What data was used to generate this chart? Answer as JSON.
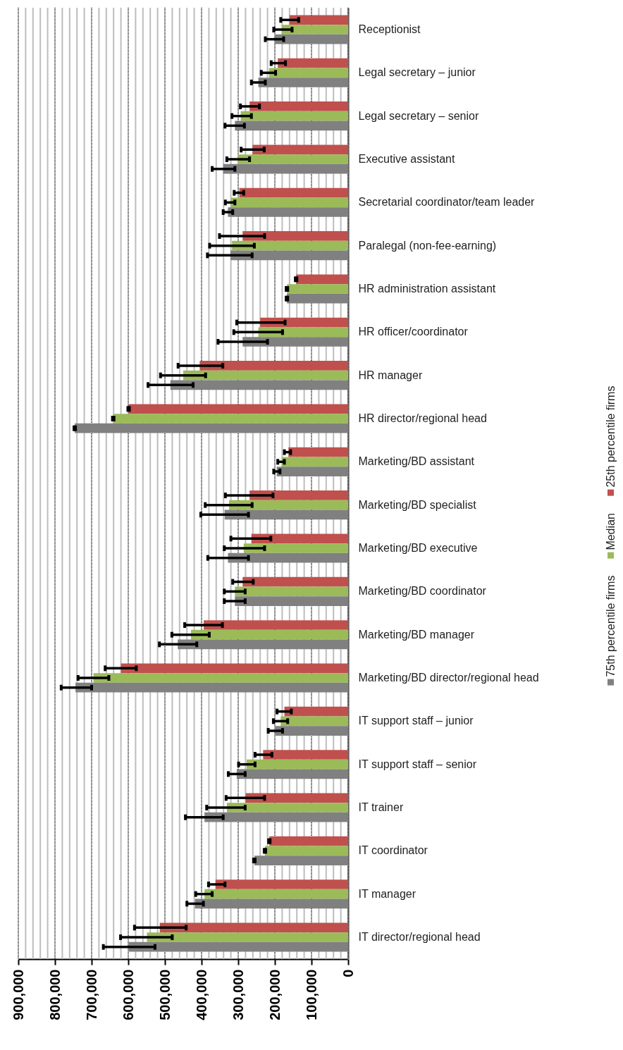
{
  "chart_data": {
    "type": "bar",
    "orientation": "horizontal",
    "categories": [
      "Receptionist",
      "Legal secretary – junior",
      "Legal secretary – senior",
      "Executive assistant",
      "Secretarial coordinator/team leader",
      "Paralegal (non-fee-earning)",
      "HR administration assistant",
      "HR officer/coordinator",
      "HR manager",
      "HR director/regional head",
      "Marketing/BD assistant",
      "Marketing/BD specialist",
      "Marketing/BD executive",
      "Marketing/BD coordinator",
      "Marketing/BD manager",
      "Marketing/BD director/regional head",
      "IT support staff – junior",
      "IT support staff – senior",
      "IT trainer",
      "IT coordinator",
      "IT manager",
      "IT director/regional head"
    ],
    "series": [
      {
        "name": "25th percentile firms",
        "color": "#c0504d",
        "values": [
          160000,
          192000,
          269000,
          261000,
          297000,
          288000,
          142000,
          240000,
          405000,
          599000,
          163000,
          269000,
          264000,
          288000,
          394000,
          620000,
          174000,
          232000,
          280000,
          215000,
          362000,
          514000
        ],
        "errors": [
          [
            135000,
            184000
          ],
          [
            171000,
            210000
          ],
          [
            242000,
            294000
          ],
          [
            229000,
            292000
          ],
          [
            285000,
            311000
          ],
          [
            228000,
            351000
          ],
          [
            140000,
            144000
          ],
          [
            172000,
            304000
          ],
          [
            342000,
            464000
          ],
          [
            597000,
            601000
          ],
          [
            157000,
            174000
          ],
          [
            205000,
            335000
          ],
          [
            211000,
            320000
          ],
          [
            259000,
            315000
          ],
          [
            343000,
            446000
          ],
          [
            578000,
            663000
          ],
          [
            155000,
            194000
          ],
          [
            208000,
            254000
          ],
          [
            228000,
            333000
          ],
          [
            213000,
            217000
          ],
          [
            336000,
            381000
          ],
          [
            442000,
            583000
          ]
        ]
      },
      {
        "name": "Median",
        "color": "#9bbb59",
        "values": [
          181000,
          216000,
          293000,
          301000,
          320000,
          317000,
          167000,
          245000,
          450000,
          641000,
          181000,
          325000,
          285000,
          309000,
          429000,
          695000,
          184000,
          277000,
          331000,
          227000,
          392000,
          549000
        ],
        "errors": [
          [
            153000,
            203000
          ],
          [
            198000,
            237000
          ],
          [
            264000,
            317000
          ],
          [
            269000,
            331000
          ],
          [
            309000,
            335000
          ],
          [
            256000,
            378000
          ],
          [
            165000,
            169000
          ],
          [
            179000,
            312000
          ],
          [
            389000,
            512000
          ],
          [
            639000,
            643000
          ],
          [
            174000,
            192000
          ],
          [
            262000,
            390000
          ],
          [
            228000,
            338000
          ],
          [
            281000,
            338000
          ],
          [
            379000,
            481000
          ],
          [
            653000,
            737000
          ],
          [
            165000,
            204000
          ],
          [
            254000,
            299000
          ],
          [
            281000,
            386000
          ],
          [
            225000,
            229000
          ],
          [
            371000,
            416000
          ],
          [
            480000,
            621000
          ]
        ]
      },
      {
        "name": "75th percentile firms",
        "color": "#808080",
        "values": [
          200000,
          245000,
          309000,
          341000,
          328000,
          321000,
          167000,
          288000,
          485000,
          746000,
          195000,
          337000,
          328000,
          309000,
          465000,
          744000,
          199000,
          304000,
          392000,
          256000,
          418000,
          599000
        ],
        "errors": [
          [
            176000,
            226000
          ],
          [
            226000,
            264000
          ],
          [
            283000,
            336000
          ],
          [
            309000,
            371000
          ],
          [
            315000,
            341000
          ],
          [
            262000,
            384000
          ],
          [
            165000,
            169000
          ],
          [
            220000,
            355000
          ],
          [
            423000,
            546000
          ],
          [
            744000,
            748000
          ],
          [
            186000,
            203000
          ],
          [
            272000,
            402000
          ],
          [
            272000,
            383000
          ],
          [
            281000,
            338000
          ],
          [
            413000,
            515000
          ],
          [
            700000,
            783000
          ],
          [
            179000,
            218000
          ],
          [
            281000,
            327000
          ],
          [
            341000,
            444000
          ],
          [
            254000,
            258000
          ],
          [
            395000,
            440000
          ],
          [
            527000,
            668000
          ]
        ]
      }
    ],
    "xlim": [
      900000,
      0
    ],
    "xticks": [
      {
        "value": 900000,
        "label": "900,000"
      },
      {
        "value": 880000,
        "label": null
      },
      {
        "value": 860000,
        "label": null
      },
      {
        "value": 840000,
        "label": null
      },
      {
        "value": 820000,
        "label": null
      },
      {
        "value": 800000,
        "label": "800,000"
      },
      {
        "value": 780000,
        "label": null
      },
      {
        "value": 760000,
        "label": null
      },
      {
        "value": 740000,
        "label": null
      },
      {
        "value": 720000,
        "label": null
      },
      {
        "value": 700000,
        "label": "700,000"
      },
      {
        "value": 680000,
        "label": null
      },
      {
        "value": 660000,
        "label": null
      },
      {
        "value": 640000,
        "label": null
      },
      {
        "value": 620000,
        "label": null
      },
      {
        "value": 600000,
        "label": "600,000"
      },
      {
        "value": 580000,
        "label": null
      },
      {
        "value": 560000,
        "label": null
      },
      {
        "value": 540000,
        "label": null
      },
      {
        "value": 520000,
        "label": null
      },
      {
        "value": 500000,
        "label": "500,000"
      },
      {
        "value": 480000,
        "label": null
      },
      {
        "value": 460000,
        "label": null
      },
      {
        "value": 440000,
        "label": null
      },
      {
        "value": 420000,
        "label": null
      },
      {
        "value": 400000,
        "label": "400,000"
      },
      {
        "value": 380000,
        "label": null
      },
      {
        "value": 360000,
        "label": null
      },
      {
        "value": 340000,
        "label": null
      },
      {
        "value": 320000,
        "label": null
      },
      {
        "value": 300000,
        "label": "300,000"
      },
      {
        "value": 280000,
        "label": null
      },
      {
        "value": 260000,
        "label": null
      },
      {
        "value": 240000,
        "label": null
      },
      {
        "value": 220000,
        "label": null
      },
      {
        "value": 200000,
        "label": "200,000"
      },
      {
        "value": 180000,
        "label": null
      },
      {
        "value": 160000,
        "label": null
      },
      {
        "value": 140000,
        "label": null
      },
      {
        "value": 120000,
        "label": null
      },
      {
        "value": 100000,
        "label": "100,000"
      },
      {
        "value": 80000,
        "label": null
      },
      {
        "value": 60000,
        "label": null
      },
      {
        "value": 40000,
        "label": null
      },
      {
        "value": 20000,
        "label": null
      },
      0
    ],
    "grid": true,
    "legend": "right"
  }
}
